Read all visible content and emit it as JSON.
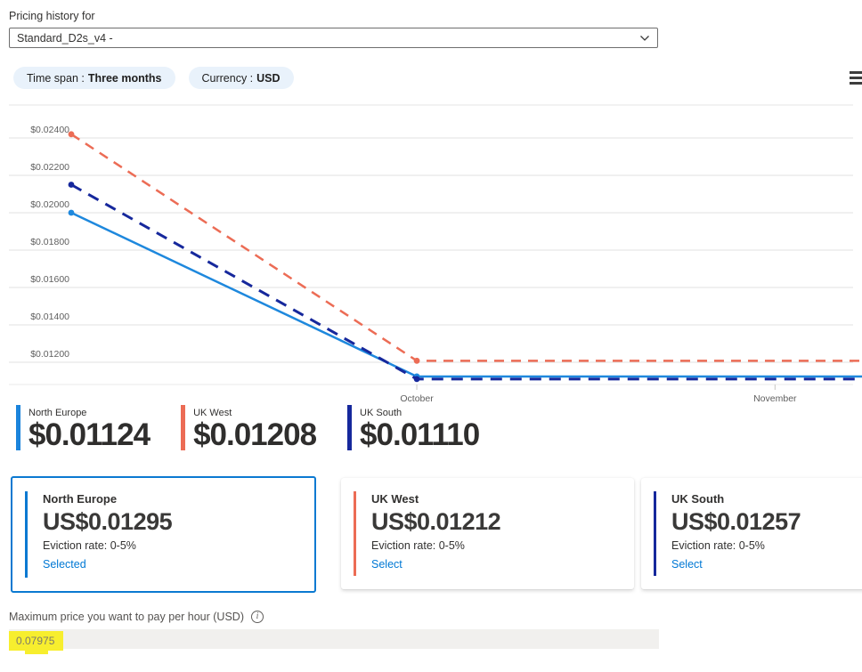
{
  "header": {
    "label": "Pricing history for",
    "dropdown_value": "Standard_D2s_v4 -"
  },
  "filters": {
    "time_span_label": "Time span :",
    "time_span_value": "Three months",
    "currency_label": "Currency :",
    "currency_value": "USD"
  },
  "chart_data": {
    "type": "line",
    "grid": true,
    "legend_position": "bottom",
    "y_axis": {
      "min": 0.012,
      "max": 0.024,
      "tick_step": 0.002
    },
    "y_ticks": [
      {
        "label": "$0.02400",
        "value": 0.024
      },
      {
        "label": "$0.02200",
        "value": 0.022
      },
      {
        "label": "$0.02000",
        "value": 0.02
      },
      {
        "label": "$0.01800",
        "value": 0.018
      },
      {
        "label": "$0.01600",
        "value": 0.016
      },
      {
        "label": "$0.01400",
        "value": 0.014
      },
      {
        "label": "$0.01200",
        "value": 0.012
      }
    ],
    "x_ticks": [
      {
        "label": "October",
        "pos": 0.437
      },
      {
        "label": "November",
        "pos": 0.89
      }
    ],
    "series": [
      {
        "name": "North Europe",
        "color": "#1e88dd",
        "style": "solid",
        "width": 2.5,
        "points": [
          {
            "pos": 0,
            "value": 0.02,
            "marker": true
          },
          {
            "pos": 0.437,
            "value": 0.01124,
            "marker": true
          },
          {
            "pos": 1,
            "value": 0.01124,
            "marker": false
          }
        ]
      },
      {
        "name": "UK West",
        "color": "#ec6c55",
        "style": "dashed",
        "width": 2.5,
        "points": [
          {
            "pos": 0,
            "value": 0.0242,
            "marker": true
          },
          {
            "pos": 0.437,
            "value": 0.01208,
            "marker": true
          },
          {
            "pos": 1,
            "value": 0.01208,
            "marker": false
          }
        ]
      },
      {
        "name": "UK South",
        "color": "#16289c",
        "style": "dashed",
        "width": 3,
        "points": [
          {
            "pos": 0,
            "value": 0.0215,
            "marker": true
          },
          {
            "pos": 0.437,
            "value": 0.0111,
            "marker": true
          },
          {
            "pos": 1,
            "value": 0.0111,
            "marker": false
          }
        ]
      }
    ]
  },
  "legend": {
    "items": [
      {
        "name": "North Europe",
        "value": "$0.01124",
        "color": "#1b84dc"
      },
      {
        "name": "UK West",
        "value": "$0.01208",
        "color": "#ec6c55"
      },
      {
        "name": "UK South",
        "value": "$0.01110",
        "color": "#16289c"
      }
    ]
  },
  "cards": [
    {
      "region": "North Europe",
      "price": "US$0.01295",
      "eviction": "Eviction rate: 0-5%",
      "action": "Selected",
      "selected": true,
      "accent": "#0b79d1"
    },
    {
      "region": "UK West",
      "price": "US$0.01212",
      "eviction": "Eviction rate: 0-5%",
      "action": "Select",
      "selected": false,
      "accent": "#ec6c55"
    },
    {
      "region": "UK South",
      "price": "US$0.01257",
      "eviction": "Eviction rate: 0-5%",
      "action": "Select",
      "selected": false,
      "accent": "#16289c"
    }
  ],
  "max_price": {
    "label": "Maximum price you want to pay per hour (USD)",
    "value": "0.07975"
  }
}
